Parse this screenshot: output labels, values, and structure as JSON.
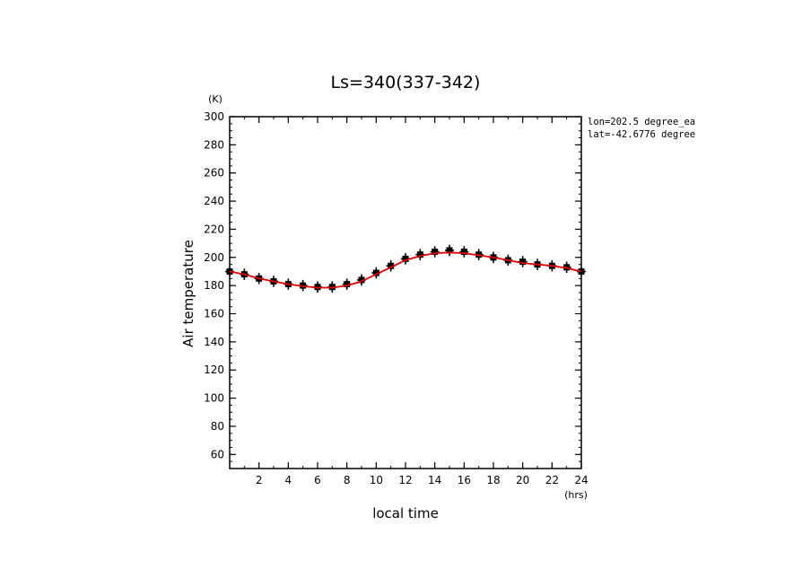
{
  "chart_data": {
    "type": "line",
    "title": "Ls=340(337-342)",
    "xlabel": "local time",
    "ylabel": "Air temperature",
    "x_unit": "(hrs)",
    "y_unit": "(K)",
    "xlim": [
      0,
      24
    ],
    "ylim": [
      50,
      300
    ],
    "x_ticks": [
      2,
      4,
      6,
      8,
      10,
      12,
      14,
      16,
      18,
      20,
      22,
      24
    ],
    "y_ticks": [
      60,
      80,
      100,
      120,
      140,
      160,
      180,
      200,
      220,
      240,
      260,
      280,
      300
    ],
    "annotations": [
      "lon=202.5 degree_ea",
      "lat=-42.6776 degree"
    ],
    "series": [
      {
        "style": "markers-with-errorbars",
        "color": "#000000",
        "x": [
          0.0,
          1.0,
          2.0,
          3.0,
          4.0,
          5.0,
          6.0,
          7.0,
          8.0,
          9.0,
          10.0,
          11.0,
          12.0,
          13.0,
          14.0,
          15.0,
          16.0,
          17.0,
          18.0,
          19.0,
          20.0,
          21.0,
          22.0,
          23.0,
          24.0
        ],
        "y": [
          190,
          188,
          185,
          183,
          181,
          180,
          179,
          179,
          181,
          184,
          189,
          194,
          199,
          202,
          204,
          205,
          204,
          202,
          200,
          198,
          197,
          195,
          194,
          193,
          190
        ],
        "err": [
          3,
          4,
          4,
          4,
          4,
          4,
          4,
          4,
          4,
          4,
          4,
          4,
          4,
          4,
          4,
          4,
          4,
          4,
          4,
          4,
          4,
          4,
          4,
          4,
          3
        ]
      },
      {
        "style": "line",
        "color": "#e00000",
        "x": [
          0.0,
          1.0,
          2.0,
          3.0,
          4.0,
          5.0,
          6.0,
          7.0,
          8.0,
          9.0,
          10.0,
          11.0,
          12.0,
          13.0,
          14.0,
          15.0,
          16.0,
          17.0,
          18.0,
          19.0,
          20.0,
          21.0,
          22.0,
          23.0,
          24.0
        ],
        "y": [
          190,
          188,
          185,
          183,
          181,
          179.5,
          178.5,
          178.5,
          180,
          183,
          188,
          193,
          198,
          201,
          203,
          203.5,
          203,
          201.5,
          200,
          198,
          196,
          195,
          194,
          192.5,
          190
        ]
      }
    ]
  }
}
